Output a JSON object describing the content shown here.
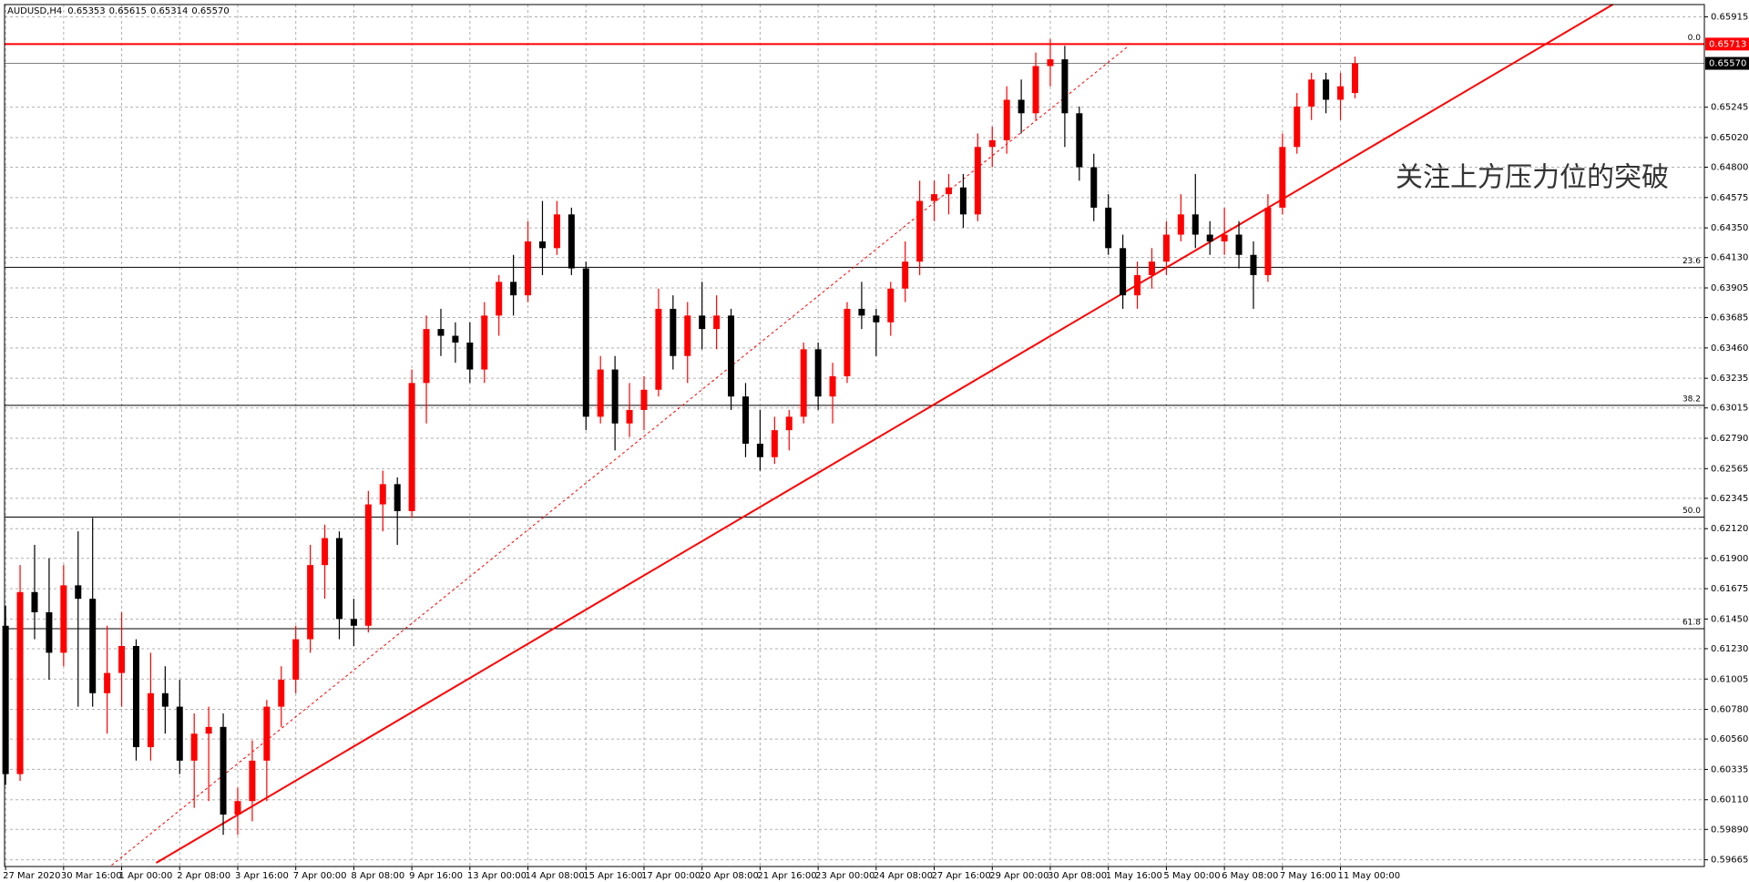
{
  "chart_data": {
    "type": "candlestick",
    "title": "AUDUSD,H4",
    "quote": [
      "0.65353",
      "0.65615",
      "0.65314",
      "0.65570"
    ],
    "annotation": "关注上方压力位的突破",
    "up_color": "#ff0000",
    "down_color": "#000000",
    "grid": true,
    "categories": [
      "27 Mar 2020",
      null,
      null,
      null,
      "30 Mar 16:00",
      null,
      null,
      null,
      "1 Apr 00:00",
      null,
      null,
      null,
      "2 Apr 08:00",
      null,
      null,
      null,
      "3 Apr 16:00",
      null,
      null,
      null,
      "7 Apr 00:00",
      null,
      null,
      null,
      "8 Apr 08:00",
      null,
      null,
      null,
      "9 Apr 16:00",
      null,
      null,
      null,
      "13 Apr 00:00",
      null,
      null,
      null,
      "14 Apr 08:00",
      null,
      null,
      null,
      "15 Apr 16:00",
      null,
      null,
      null,
      "17 Apr 00:00",
      null,
      null,
      null,
      "20 Apr 08:00",
      null,
      null,
      null,
      "21 Apr 16:00",
      null,
      null,
      null,
      "23 Apr 00:00",
      null,
      null,
      null,
      "24 Apr 08:00",
      null,
      null,
      null,
      "27 Apr 16:00",
      null,
      null,
      null,
      "29 Apr 00:00",
      null,
      null,
      null,
      "30 Apr 08:00",
      null,
      null,
      null,
      "1 May 16:00",
      null,
      null,
      null,
      "5 May 00:00",
      null,
      null,
      null,
      "6 May 08:00",
      null,
      null,
      null,
      "7 May 16:00",
      null,
      null,
      null,
      "11 May 00:00",
      null
    ],
    "open": [
      0.614,
      0.603,
      0.6165,
      0.615,
      0.612,
      0.617,
      0.616,
      0.609,
      0.6105,
      0.6125,
      0.605,
      0.609,
      0.608,
      0.604,
      0.606,
      0.6065,
      0.6,
      0.601,
      0.604,
      0.608,
      0.61,
      0.613,
      0.6185,
      0.6205,
      0.6145,
      0.614,
      0.623,
      0.6245,
      0.6225,
      0.632,
      0.636,
      0.6355,
      0.635,
      0.633,
      0.637,
      0.6395,
      0.6385,
      0.6425,
      0.642,
      0.6445,
      0.6405,
      0.6295,
      0.633,
      0.629,
      0.63,
      0.6315,
      0.6375,
      0.634,
      0.637,
      0.636,
      0.637,
      0.631,
      0.6275,
      0.6265,
      0.6285,
      0.6295,
      0.6345,
      0.631,
      0.6325,
      0.6375,
      0.637,
      0.6365,
      0.639,
      0.641,
      0.6455,
      0.646,
      0.6465,
      0.6445,
      0.6495,
      0.65,
      0.653,
      0.652,
      0.6555,
      0.656,
      0.652,
      0.648,
      0.645,
      0.642,
      0.6385,
      0.64,
      0.641,
      0.643,
      0.6445,
      0.643,
      0.6425,
      0.643,
      0.6415,
      0.64,
      0.645,
      0.6495,
      0.6525,
      0.6545,
      0.653,
      0.6535
    ],
    "high": [
      0.6155,
      0.6185,
      0.62,
      0.619,
      0.6185,
      0.621,
      0.622,
      0.614,
      0.615,
      0.613,
      0.612,
      0.611,
      0.61,
      0.6075,
      0.608,
      0.6075,
      0.602,
      0.6055,
      0.6085,
      0.611,
      0.614,
      0.62,
      0.6215,
      0.621,
      0.616,
      0.624,
      0.6255,
      0.625,
      0.633,
      0.637,
      0.6375,
      0.6365,
      0.6365,
      0.638,
      0.64,
      0.6415,
      0.644,
      0.6455,
      0.6455,
      0.645,
      0.641,
      0.634,
      0.634,
      0.632,
      0.6325,
      0.639,
      0.6385,
      0.638,
      0.6395,
      0.6385,
      0.6375,
      0.632,
      0.63,
      0.6295,
      0.63,
      0.635,
      0.635,
      0.6335,
      0.638,
      0.6395,
      0.6375,
      0.6395,
      0.6425,
      0.647,
      0.647,
      0.6475,
      0.6475,
      0.6505,
      0.651,
      0.654,
      0.6545,
      0.6565,
      0.6575,
      0.657,
      0.6525,
      0.649,
      0.646,
      0.643,
      0.641,
      0.642,
      0.644,
      0.646,
      0.6475,
      0.644,
      0.645,
      0.644,
      0.6425,
      0.646,
      0.6505,
      0.6535,
      0.655,
      0.655,
      0.655,
      0.6562
    ],
    "low": [
      0.6022,
      0.6025,
      0.613,
      0.61,
      0.611,
      0.608,
      0.608,
      0.606,
      0.608,
      0.604,
      0.604,
      0.606,
      0.603,
      0.6005,
      0.601,
      0.5985,
      0.5985,
      0.5995,
      0.601,
      0.6065,
      0.609,
      0.612,
      0.616,
      0.613,
      0.6125,
      0.6135,
      0.621,
      0.62,
      0.622,
      0.629,
      0.634,
      0.6335,
      0.632,
      0.632,
      0.6355,
      0.637,
      0.638,
      0.64,
      0.6415,
      0.64,
      0.6285,
      0.629,
      0.627,
      0.628,
      0.6285,
      0.631,
      0.633,
      0.632,
      0.6345,
      0.6345,
      0.63,
      0.6265,
      0.6255,
      0.626,
      0.627,
      0.629,
      0.63,
      0.629,
      0.632,
      0.636,
      0.634,
      0.6355,
      0.638,
      0.64,
      0.644,
      0.6445,
      0.6435,
      0.644,
      0.648,
      0.649,
      0.6505,
      0.6515,
      0.654,
      0.6495,
      0.647,
      0.644,
      0.6415,
      0.6375,
      0.6375,
      0.639,
      0.64,
      0.6425,
      0.642,
      0.6415,
      0.6415,
      0.6405,
      0.6375,
      0.6395,
      0.6445,
      0.649,
      0.6515,
      0.652,
      0.6515,
      0.6531
    ],
    "close": [
      0.603,
      0.6165,
      0.615,
      0.612,
      0.617,
      0.616,
      0.609,
      0.6105,
      0.6125,
      0.605,
      0.609,
      0.608,
      0.604,
      0.606,
      0.6065,
      0.6,
      0.601,
      0.604,
      0.608,
      0.61,
      0.613,
      0.6185,
      0.6205,
      0.6145,
      0.614,
      0.623,
      0.6245,
      0.6225,
      0.632,
      0.636,
      0.6355,
      0.635,
      0.633,
      0.637,
      0.6395,
      0.6385,
      0.6425,
      0.642,
      0.6445,
      0.6405,
      0.6295,
      0.633,
      0.629,
      0.63,
      0.6315,
      0.6375,
      0.634,
      0.637,
      0.636,
      0.637,
      0.631,
      0.6275,
      0.6265,
      0.6285,
      0.6295,
      0.6345,
      0.631,
      0.6325,
      0.6375,
      0.637,
      0.6365,
      0.639,
      0.641,
      0.6455,
      0.646,
      0.6465,
      0.6445,
      0.6495,
      0.65,
      0.653,
      0.652,
      0.6555,
      0.656,
      0.652,
      0.648,
      0.645,
      0.642,
      0.6385,
      0.64,
      0.641,
      0.643,
      0.6445,
      0.643,
      0.6425,
      0.643,
      0.6415,
      0.64,
      0.645,
      0.6495,
      0.6525,
      0.6545,
      0.653,
      0.654,
      0.6557
    ],
    "ylim": [
      0.59615,
      0.66006
    ],
    "yticks": [
      0.65915,
      0.65245,
      {
        "value": 0.6502,
        "label": "0.65020"
      },
      {
        "value": 0.648,
        "label": "0.64800"
      },
      0.64575,
      {
        "value": 0.6435,
        "label": "0.64350"
      },
      {
        "value": 0.6413,
        "label": "0.64130"
      },
      0.63905,
      0.63685,
      {
        "value": 0.6346,
        "label": "0.63460"
      },
      0.63235,
      0.63015,
      {
        "value": 0.6279,
        "label": "0.62790"
      },
      0.62565,
      0.62345,
      {
        "value": 0.6212,
        "label": "0.62120"
      },
      {
        "value": 0.619,
        "label": "0.61900"
      },
      0.61675,
      {
        "value": 0.6145,
        "label": "0.61450"
      },
      {
        "value": 0.6123,
        "label": "0.61230"
      },
      0.61005,
      {
        "value": 0.6078,
        "label": "0.60780"
      },
      {
        "value": 0.6056,
        "label": "0.60560"
      },
      0.60335,
      {
        "value": 0.6011,
        "label": "0.60110"
      },
      {
        "value": 0.5989,
        "label": "0.59890"
      },
      0.59665
    ],
    "fib_levels": [
      {
        "value": 0.65713,
        "label": "0.0"
      },
      {
        "value": 0.64058,
        "label": "23.6"
      },
      {
        "value": 0.63034,
        "label": "38.2"
      },
      {
        "value": 0.62206,
        "label": "50.0"
      },
      {
        "value": 0.61378,
        "label": "61.8"
      }
    ],
    "price_lines": [
      {
        "value": 0.65713,
        "label": "0.65713",
        "color": "#ff0000"
      },
      {
        "value": 0.6557,
        "label": "0.65570",
        "color": "#000000"
      }
    ]
  }
}
